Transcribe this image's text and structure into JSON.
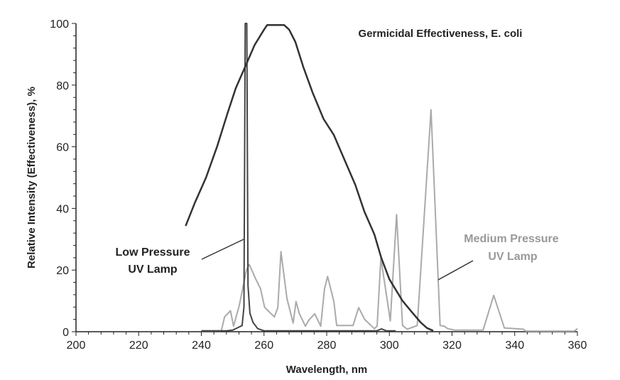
{
  "chart_data": {
    "type": "line",
    "title": "Germicidal Effectiveness, E. coli",
    "xlabel": "Wavelength, nm",
    "ylabel": "Relative Intensity (Effectiveness), %",
    "xlim": [
      200,
      360
    ],
    "ylim": [
      0,
      100
    ],
    "xticks": [
      200,
      220,
      240,
      260,
      280,
      300,
      320,
      340,
      360
    ],
    "yticks": [
      0,
      20,
      40,
      60,
      80,
      100
    ],
    "grid": false,
    "annotations": [
      "Low Pressure",
      "UV Lamp",
      "Medium Pressure",
      "UV Lamp"
    ],
    "series": [
      {
        "name": "Germicidal Effectiveness, E. coli",
        "color": "#333333",
        "x": [
          235,
          238,
          241.5,
          245,
          248.3,
          251,
          254.4,
          257,
          260,
          261,
          266.4,
          268,
          270,
          272.5,
          275.5,
          279,
          282.3,
          286,
          289.1,
          292,
          295.2,
          297.4,
          300,
          304.2,
          307.3,
          310,
          312,
          314
        ],
        "y": [
          34.3,
          42,
          50,
          60,
          70.7,
          79,
          86.9,
          93,
          98,
          99.5,
          99.5,
          98,
          94,
          86,
          77.6,
          69,
          63.8,
          55,
          47.7,
          39,
          31.6,
          24,
          17,
          10,
          6.2,
          3,
          1.2,
          0.3
        ]
      },
      {
        "name": "Low Pressure UV Lamp",
        "color": "#444444",
        "x": [
          240,
          248,
          250,
          252,
          253,
          253.6,
          254,
          254.5,
          254.9,
          255.5,
          256.5,
          258,
          260,
          296,
          297.5,
          299,
          302
        ],
        "y": [
          0.3,
          0.3,
          0.5,
          1.5,
          2,
          8,
          100,
          100,
          15,
          6,
          3,
          1,
          0.3,
          0.3,
          0.9,
          0.3,
          0.3
        ]
      },
      {
        "name": "Medium Pressure UV Lamp",
        "color": "#aaaaaa",
        "x": [
          240,
          246.4,
          247.4,
          249.3,
          250.3,
          252.1,
          254.4,
          255.3,
          257.4,
          258.9,
          260.2,
          263.3,
          264.4,
          265.4,
          267.3,
          269.3,
          270.2,
          271.3,
          273.2,
          274.4,
          276.2,
          278.1,
          279.3,
          280.3,
          282.3,
          283.2,
          288.4,
          290.2,
          292.1,
          295.2,
          296.1,
          297.3,
          300.3,
          302.3,
          304.2,
          305.7,
          308.9,
          313.3,
          316.2,
          317.5,
          318.6,
          320.9,
          329.9,
          333.3,
          336.7,
          342.8,
          343.5,
          359,
          360
        ],
        "y": [
          0.3,
          0.3,
          4.8,
          6.8,
          1.8,
          8.5,
          20,
          21.8,
          17,
          13.9,
          7.9,
          4.8,
          7.8,
          26,
          10.8,
          2.8,
          9.8,
          5.8,
          1.8,
          3.9,
          5.8,
          1.8,
          13.9,
          17.9,
          9.8,
          2,
          2,
          7.8,
          4,
          1,
          1.8,
          23.9,
          3.5,
          38,
          2,
          0.8,
          2,
          72,
          2,
          1.8,
          1,
          0.5,
          0.5,
          11.8,
          1.2,
          0.8,
          0.2,
          0.2,
          1
        ]
      }
    ]
  }
}
